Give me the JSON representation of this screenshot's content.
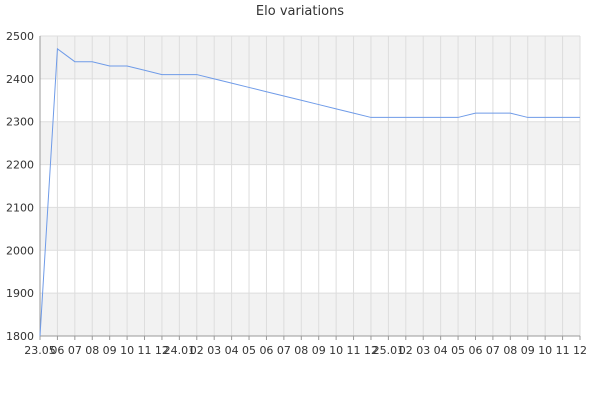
{
  "chart_data": {
    "type": "line",
    "title": "Elo variations",
    "xlabel": "",
    "ylabel": "",
    "ylim": [
      1800,
      2500
    ],
    "yticks": [
      1800,
      1900,
      2000,
      2100,
      2200,
      2300,
      2400,
      2500
    ],
    "grid": true,
    "alt_band_color": "#f2f2f2",
    "grid_color": "#dddddd",
    "line_color": "#6f9be8",
    "categories": [
      "23.05",
      "06",
      "07",
      "08",
      "09",
      "10",
      "11",
      "12",
      "24.01",
      "02",
      "03",
      "04",
      "05",
      "06",
      "07",
      "08",
      "09",
      "10",
      "11",
      "12",
      "25.01",
      "02",
      "03",
      "04",
      "05",
      "06",
      "07",
      "08",
      "09",
      "10",
      "11",
      "12"
    ],
    "series": [
      {
        "values": [
          1800,
          2470,
          2440,
          2440,
          2430,
          2430,
          2420,
          2410,
          2410,
          2410,
          2400,
          2390,
          2380,
          2370,
          2360,
          2350,
          2340,
          2330,
          2320,
          2310,
          2310,
          2310,
          2310,
          2310,
          2310,
          2320,
          2320,
          2320,
          2310,
          2310,
          2310,
          2310
        ]
      }
    ]
  }
}
